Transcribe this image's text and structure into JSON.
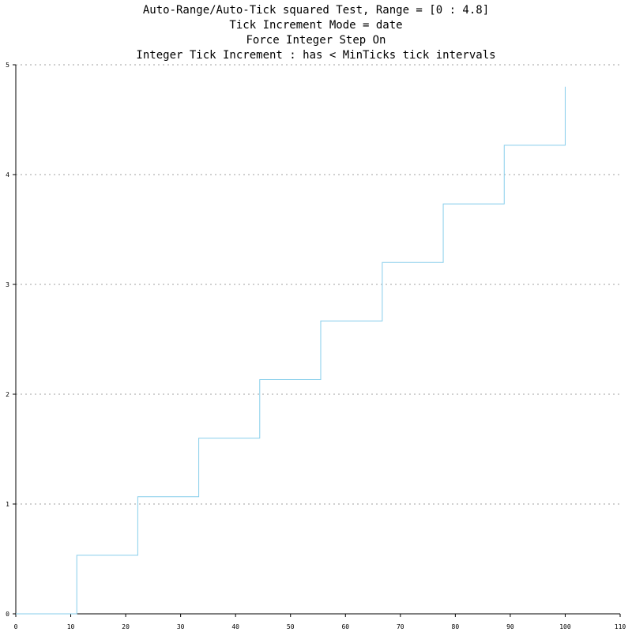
{
  "chart_data": {
    "type": "line",
    "step": true,
    "title_lines": [
      "Auto-Range/Auto-Tick squared Test, Range = [0 : 4.8]",
      "Tick Increment Mode = date",
      "Force Integer Step On",
      "Integer Tick Increment : has < MinTicks tick intervals"
    ],
    "xlabel": "",
    "ylabel": "",
    "xlim": [
      0,
      110
    ],
    "ylim": [
      0,
      5
    ],
    "x_ticks": [
      0,
      10,
      20,
      30,
      40,
      50,
      60,
      70,
      80,
      90,
      100,
      110
    ],
    "y_ticks": [
      0,
      1,
      2,
      3,
      4,
      5
    ],
    "grid": "horizontal dotted",
    "series": [
      {
        "color": "#87ceeb",
        "x": [
          0,
          11.1,
          11.1,
          22.2,
          22.2,
          33.3,
          33.3,
          44.4,
          44.4,
          55.5,
          55.5,
          66.7,
          66.7,
          77.8,
          77.8,
          88.9,
          88.9,
          100,
          100
        ],
        "y": [
          0,
          0,
          0.533,
          0.533,
          1.067,
          1.067,
          1.6,
          1.6,
          2.133,
          2.133,
          2.667,
          2.667,
          3.2,
          3.2,
          3.733,
          3.733,
          4.267,
          4.267,
          4.8
        ]
      }
    ]
  }
}
